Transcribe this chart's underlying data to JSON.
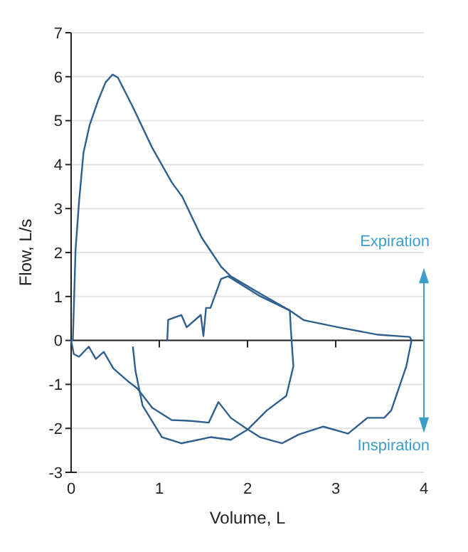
{
  "chart_data": {
    "type": "line",
    "xlabel": "Volume, L",
    "ylabel": "Flow, L/s",
    "xlim": [
      0,
      4
    ],
    "xticks": [
      0,
      1,
      2,
      3,
      4
    ],
    "ylim": [
      -3,
      7
    ],
    "yticks": [
      -3,
      -2,
      -1,
      0,
      1,
      2,
      3,
      4,
      5,
      6,
      7
    ],
    "grid": "y",
    "marker": "none",
    "line_style": "solid",
    "annotations": [
      "Expiration",
      "Inspiration"
    ],
    "series": [
      {
        "color": "#2f5f8f",
        "x": [
          0,
          0.02,
          0.05,
          0.09,
          0.14,
          0.21,
          0.31,
          0.39,
          0.47,
          0.53,
          0.7,
          0.92,
          1.14,
          1.26,
          1.48,
          1.7,
          1.81,
          2.14,
          2.48,
          2.64,
          3.03,
          3.48,
          3.84,
          3.86
        ],
        "values": [
          0,
          0.02,
          2.06,
          3.16,
          4.27,
          4.9,
          5.48,
          5.87,
          6.05,
          5.98,
          5.31,
          4.38,
          3.6,
          3.27,
          2.34,
          1.68,
          1.46,
          1.07,
          0.68,
          0.46,
          0.3,
          0.13,
          0.08,
          0
        ]
      },
      {
        "color": "#2f5f8f",
        "x": [
          0,
          0.03,
          0.09,
          0.2,
          0.28,
          0.37,
          0.48,
          0.64,
          0.75,
          0.92,
          1.14,
          1.36,
          1.56,
          1.67,
          1.81,
          1.97,
          2.14,
          2.39,
          2.58,
          2.86,
          3.14,
          3.36,
          3.55,
          3.63,
          3.8,
          3.86
        ],
        "values": [
          0,
          -0.31,
          -0.37,
          -0.14,
          -0.42,
          -0.26,
          -0.64,
          -0.92,
          -1.09,
          -1.53,
          -1.81,
          -1.83,
          -1.87,
          -1.4,
          -1.76,
          -1.98,
          -2.2,
          -2.34,
          -2.14,
          -1.96,
          -2.12,
          -1.76,
          -1.76,
          -1.59,
          -0.59,
          0
        ]
      },
      {
        "color": "#2f5f8f",
        "x": [
          1.09,
          1.1,
          1.25,
          1.31,
          1.47,
          1.5,
          1.53,
          1.58,
          1.7,
          1.78,
          2.14,
          2.48,
          2.49,
          2.5,
          2.52,
          2.44,
          2.22,
          2,
          1.81,
          1.58,
          1.25,
          1.03,
          0.81,
          0.73,
          0.7
        ],
        "values": [
          0,
          0.47,
          0.58,
          0.3,
          0.58,
          0.1,
          0.74,
          0.74,
          1.4,
          1.46,
          1.01,
          0.68,
          0.3,
          0,
          -0.59,
          -1.26,
          -1.59,
          -2.03,
          -2.26,
          -2.2,
          -2.34,
          -2.2,
          -1.48,
          -0.7,
          -0.14
        ]
      }
    ]
  }
}
